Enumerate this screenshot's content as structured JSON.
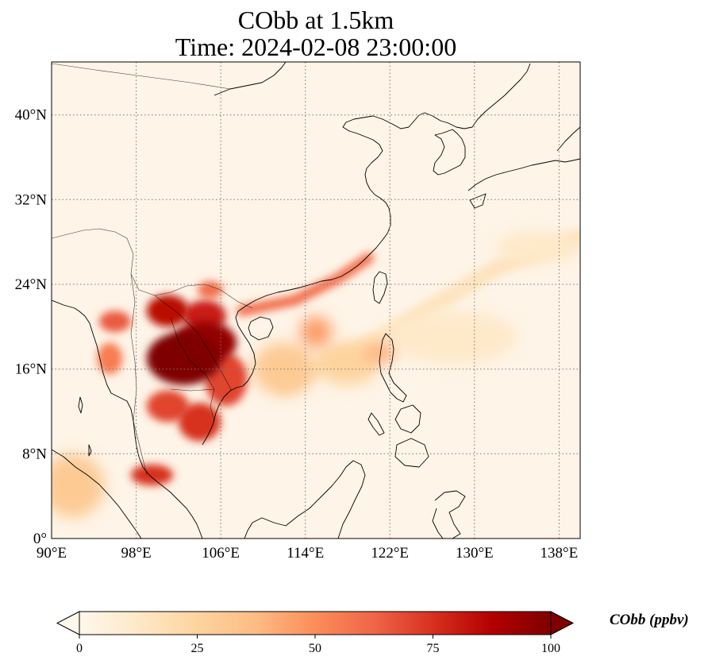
{
  "title": {
    "line1": "CObb at 1.5km",
    "line2": "Time: 2024-02-08 23:00:00"
  },
  "map": {
    "extent": {
      "lon_min": 90,
      "lon_max": 140,
      "lat_min": 0,
      "lat_max": 45
    },
    "lon_ticks": [
      {
        "value": 90,
        "label": "90°E"
      },
      {
        "value": 98,
        "label": "98°E"
      },
      {
        "value": 106,
        "label": "106°E"
      },
      {
        "value": 114,
        "label": "114°E"
      },
      {
        "value": 122,
        "label": "122°E"
      },
      {
        "value": 130,
        "label": "130°E"
      },
      {
        "value": 138,
        "label": "138°E"
      }
    ],
    "lat_ticks": [
      {
        "value": 0,
        "label": "0°"
      },
      {
        "value": 8,
        "label": "8°N"
      },
      {
        "value": 16,
        "label": "16°N"
      },
      {
        "value": 24,
        "label": "24°N"
      },
      {
        "value": 32,
        "label": "32°N"
      },
      {
        "value": 40,
        "label": "40°N"
      }
    ],
    "gridlines": "dotted",
    "field": "CObb",
    "level": "1.5km",
    "colormap": "OrRd",
    "plumes": [
      {
        "lon": 102.5,
        "lat": 17.0,
        "rlon": 3.5,
        "rlat": 2.5,
        "value": 100
      },
      {
        "lon": 104.5,
        "lat": 18.5,
        "rlon": 3.0,
        "rlat": 2.0,
        "value": 95
      },
      {
        "lon": 101.0,
        "lat": 21.5,
        "rlon": 2.0,
        "rlat": 1.5,
        "value": 85
      },
      {
        "lon": 104.5,
        "lat": 21.0,
        "rlon": 2.0,
        "rlat": 1.5,
        "value": 80
      },
      {
        "lon": 106.5,
        "lat": 15.0,
        "rlon": 2.0,
        "rlat": 2.5,
        "value": 70
      },
      {
        "lon": 104.0,
        "lat": 11.0,
        "rlon": 2.0,
        "rlat": 1.8,
        "value": 75
      },
      {
        "lon": 101.0,
        "lat": 12.5,
        "rlon": 2.0,
        "rlat": 1.5,
        "value": 70
      },
      {
        "lon": 99.5,
        "lat": 6.0,
        "rlon": 2.0,
        "rlat": 1.0,
        "value": 75
      },
      {
        "lon": 96.0,
        "lat": 20.5,
        "rlon": 1.5,
        "rlat": 1.0,
        "value": 65
      },
      {
        "lon": 95.5,
        "lat": 17.0,
        "rlon": 1.2,
        "rlat": 1.5,
        "value": 55
      },
      {
        "lon": 105.0,
        "lat": 23.5,
        "rlon": 1.2,
        "rlat": 0.8,
        "value": 60
      },
      {
        "lon": 115.0,
        "lat": 19.5,
        "rlon": 1.5,
        "rlat": 1.5,
        "value": 45
      },
      {
        "lon": 121.0,
        "lat": 17.5,
        "rlon": 1.5,
        "rlat": 1.0,
        "value": 40
      },
      {
        "lon": 112.0,
        "lat": 16.0,
        "rlon": 3.0,
        "rlat": 2.5,
        "value": 30
      },
      {
        "lon": 118.0,
        "lat": 16.5,
        "rlon": 3.0,
        "rlat": 2.0,
        "value": 25
      },
      {
        "lon": 92.0,
        "lat": 5.0,
        "rlon": 3.0,
        "rlat": 3.0,
        "value": 30
      },
      {
        "lon": 128.0,
        "lat": 19.0,
        "rlon": 6.0,
        "rlat": 2.5,
        "value": 12
      },
      {
        "lon": 136.0,
        "lat": 27.5,
        "rlon": 4.0,
        "rlat": 1.5,
        "value": 12
      }
    ],
    "bands": [
      {
        "points": [
          [
            108,
            21.5
          ],
          [
            113,
            22.5
          ],
          [
            117,
            24.5
          ],
          [
            120,
            26.5
          ]
        ],
        "width": 1.0,
        "value": 60
      },
      {
        "points": [
          [
            112,
            14.5
          ],
          [
            122,
            19.5
          ],
          [
            132,
            25.5
          ],
          [
            140,
            28.5
          ]
        ],
        "width": 1.6,
        "value": 15
      }
    ]
  },
  "colorbar": {
    "ticks": [
      {
        "value": 0,
        "label": "0"
      },
      {
        "value": 25,
        "label": "25"
      },
      {
        "value": 50,
        "label": "50"
      },
      {
        "value": 75,
        "label": "75"
      },
      {
        "value": 100,
        "label": "100"
      }
    ],
    "label": "CObb (ppbv)",
    "vmin": 0,
    "vmax": 100,
    "extend": "both"
  }
}
